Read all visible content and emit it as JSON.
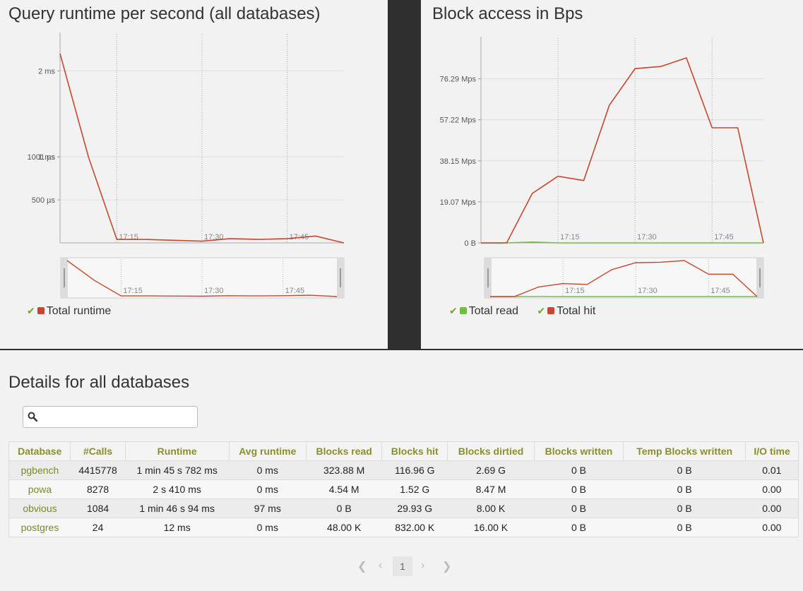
{
  "panels": {
    "runtime": {
      "title": "Query runtime per second (all databases)",
      "legend": [
        {
          "label": "Total runtime",
          "color": "#c9462c"
        }
      ]
    },
    "blocks": {
      "title": "Block access in Bps",
      "legend": [
        {
          "label": "Total read",
          "color": "#6fbf3f"
        },
        {
          "label": "Total hit",
          "color": "#c9462c"
        }
      ]
    }
  },
  "chart_data": [
    {
      "type": "line",
      "title": "Query runtime per second (all databases)",
      "x_ticks": [
        "17:15",
        "17:30",
        "17:45"
      ],
      "y_ticks": [
        "2 ms",
        "1001 µs",
        "1 ms",
        "500 µs"
      ],
      "ylim": [
        0,
        2.2
      ],
      "y_unit": "ms",
      "series": [
        {
          "name": "Total runtime",
          "color": "#c9462c",
          "x": [
            "17:05",
            "17:10",
            "17:15",
            "17:20",
            "17:25",
            "17:30",
            "17:35",
            "17:40",
            "17:45",
            "17:50",
            "17:55"
          ],
          "values": [
            2.2,
            1.0,
            0.04,
            0.04,
            0.03,
            0.02,
            0.05,
            0.04,
            0.05,
            0.08,
            0.0
          ]
        }
      ]
    },
    {
      "type": "line",
      "title": "Block access in Bps",
      "x_ticks": [
        "17:15",
        "17:30",
        "17:45"
      ],
      "y_ticks": [
        "76.29 Mps",
        "57.22 Mps",
        "38.15 Mps",
        "19.07 Mps",
        "0 B"
      ],
      "ylim": [
        0,
        86
      ],
      "y_unit": "Mps",
      "series": [
        {
          "name": "Total read",
          "color": "#6fbf3f",
          "x": [
            "17:00",
            "17:05",
            "17:10",
            "17:15",
            "17:20",
            "17:25",
            "17:30",
            "17:35",
            "17:40",
            "17:45",
            "17:50",
            "17:55"
          ],
          "values": [
            0,
            0,
            0.4,
            0.0,
            0,
            0,
            0,
            0,
            0,
            0,
            0,
            0
          ]
        },
        {
          "name": "Total hit",
          "color": "#c9462c",
          "x": [
            "17:00",
            "17:05",
            "17:10",
            "17:15",
            "17:20",
            "17:25",
            "17:30",
            "17:35",
            "17:40",
            "17:45",
            "17:50",
            "17:55"
          ],
          "values": [
            0,
            0,
            23,
            31,
            29,
            64,
            81,
            82,
            86,
            53.5,
            53.5,
            0
          ]
        }
      ]
    }
  ],
  "details": {
    "title": "Details for all databases",
    "search_placeholder": "",
    "columns": [
      "Database",
      "#Calls",
      "Runtime",
      "Avg runtime",
      "Blocks read",
      "Blocks hit",
      "Blocks dirtied",
      "Blocks written",
      "Temp Blocks written",
      "I/O time"
    ],
    "rows": [
      [
        "pgbench",
        "4415778",
        "1 min 45 s 782 ms",
        "0 ms",
        "323.88 M",
        "116.96 G",
        "2.69 G",
        "0 B",
        "0 B",
        "0.01"
      ],
      [
        "powa",
        "8278",
        "2 s 410 ms",
        "0 ms",
        "4.54 M",
        "1.52 G",
        "8.47 M",
        "0 B",
        "0 B",
        "0.00"
      ],
      [
        "obvious",
        "1084",
        "1 min 46 s 94 ms",
        "97 ms",
        "0 B",
        "29.93 G",
        "8.00 K",
        "0 B",
        "0 B",
        "0.00"
      ],
      [
        "postgres",
        "24",
        "12 ms",
        "0 ms",
        "48.00 K",
        "832.00 K",
        "16.00 K",
        "0 B",
        "0 B",
        "0.00"
      ]
    ]
  },
  "pagination": {
    "first": "❮",
    "prev": "‹",
    "current": "1",
    "next": "›",
    "last": "❯"
  }
}
